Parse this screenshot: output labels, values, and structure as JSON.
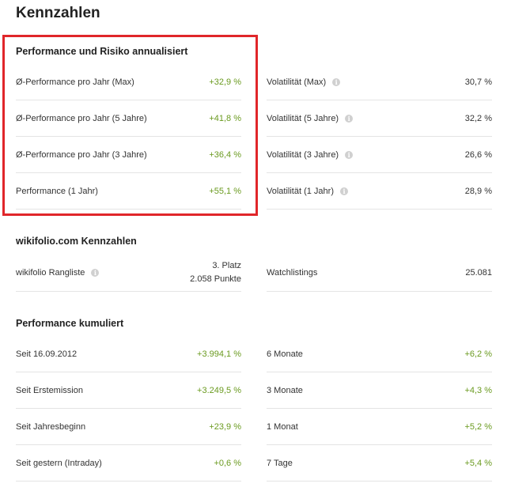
{
  "page_title": "Kennzahlen",
  "sections": {
    "perf_risk": {
      "title": "Performance und Risiko annualisiert",
      "left": [
        {
          "label": "Ø-Performance pro Jahr (Max)",
          "value": "+32,9 %"
        },
        {
          "label": "Ø-Performance pro Jahr (5 Jahre)",
          "value": "+41,8 %"
        },
        {
          "label": "Ø-Performance pro Jahr (3 Jahre)",
          "value": "+36,4 %"
        },
        {
          "label": "Performance (1 Jahr)",
          "value": "+55,1 %"
        }
      ],
      "right": [
        {
          "label": "Volatilität (Max)",
          "value": "30,7 %"
        },
        {
          "label": "Volatilität (5 Jahre)",
          "value": "32,2 %"
        },
        {
          "label": "Volatilität (3 Jahre)",
          "value": "26,6 %"
        },
        {
          "label": "Volatilität (1 Jahr)",
          "value": "28,9 %"
        }
      ]
    },
    "wikifolio": {
      "title": "wikifolio.com Kennzahlen",
      "rangliste_label": "wikifolio Rangliste",
      "rangliste_platz": "3. Platz",
      "rangliste_punkte": "2.058 Punkte",
      "watchlistings_label": "Watchlistings",
      "watchlistings_value": "25.081"
    },
    "cumulative": {
      "title": "Performance kumuliert",
      "left": [
        {
          "label": "Seit 16.09.2012",
          "value": "+3.994,1 %"
        },
        {
          "label": "Seit Erstemission",
          "value": "+3.249,5 %"
        },
        {
          "label": "Seit Jahresbeginn",
          "value": "+23,9 %"
        },
        {
          "label": "Seit gestern (Intraday)",
          "value": "+0,6 %"
        }
      ],
      "right": [
        {
          "label": "6 Monate",
          "value": "+6,2 %"
        },
        {
          "label": "3 Monate",
          "value": "+4,3 %"
        },
        {
          "label": "1 Monat",
          "value": "+5,2 %"
        },
        {
          "label": "7 Tage",
          "value": "+5,4 %"
        }
      ]
    }
  },
  "info_icon_glyph": "i",
  "colors": {
    "positive": "#6a9a1f",
    "highlight_border": "#e0262a",
    "divider": "#e4e4e4"
  }
}
